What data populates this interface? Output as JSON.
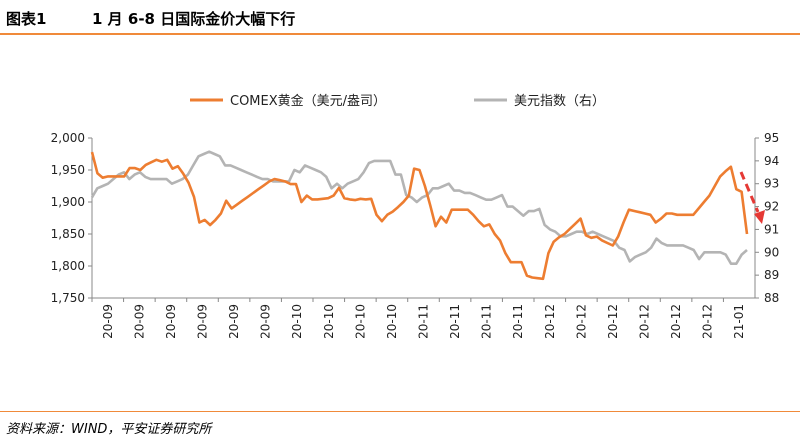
{
  "header": {
    "label": "图表1",
    "title": "1 月 6-8 日国际金价大幅下行"
  },
  "source": "资料来源：WIND，平安证券研究所",
  "colors": {
    "gold": "#ed7d31",
    "usd": "#b4b4b4",
    "arrow": "#e53935",
    "accent": "#f08a3a"
  },
  "chart_data": {
    "type": "line",
    "title": "1 月 6-8 日国际金价大幅下行",
    "legend_position": "top",
    "grid": false,
    "x_tick_labels": [
      "20-09",
      "20-09",
      "20-09",
      "20-09",
      "20-09",
      "20-09",
      "20-10",
      "20-10",
      "20-10",
      "20-10",
      "20-11",
      "20-11",
      "20-11",
      "20-11",
      "20-12",
      "20-12",
      "20-12",
      "20-12",
      "20-12",
      "20-12",
      "21-01"
    ],
    "y_left": {
      "min": 1750,
      "max": 2000,
      "ticks": [
        "1,750",
        "1,800",
        "1,850",
        "1,900",
        "1,950",
        "2,000"
      ]
    },
    "y_right": {
      "min": 88,
      "max": 95,
      "ticks": [
        "88",
        "89",
        "90",
        "91",
        "92",
        "93",
        "94",
        "95"
      ]
    },
    "series": [
      {
        "name": "COMEX黄金（美元/盎司）",
        "axis": "left",
        "values": [
          1978,
          1945,
          1938,
          1940,
          1940,
          1940,
          1940,
          1953,
          1953,
          1950,
          1958,
          1962,
          1966,
          1963,
          1966,
          1952,
          1956,
          1944,
          1930,
          1908,
          1868,
          1872,
          1864,
          1872,
          1882,
          1902,
          1890,
          1896,
          1902,
          1908,
          1914,
          1920,
          1926,
          1932,
          1936,
          1934,
          1932,
          1928,
          1928,
          1900,
          1910,
          1904,
          1904,
          1905,
          1906,
          1910,
          1922,
          1906,
          1904,
          1903,
          1905,
          1904,
          1905,
          1880,
          1870,
          1880,
          1885,
          1892,
          1900,
          1910,
          1952,
          1950,
          1925,
          1895,
          1862,
          1877,
          1868,
          1888,
          1888,
          1888,
          1888,
          1880,
          1870,
          1862,
          1865,
          1850,
          1840,
          1820,
          1806,
          1806,
          1806,
          1785,
          1782,
          1781,
          1780,
          1820,
          1838,
          1845,
          1850,
          1858,
          1866,
          1874,
          1848,
          1844,
          1846,
          1840,
          1836,
          1832,
          1846,
          1868,
          1888,
          1886,
          1884,
          1882,
          1880,
          1868,
          1874,
          1882,
          1882,
          1880,
          1880,
          1880,
          1880,
          1890,
          1900,
          1910,
          1925,
          1940,
          1948,
          1955,
          1920,
          1916,
          1850
        ]
      },
      {
        "name": "美元指数（右）",
        "axis": "right",
        "values": [
          92.4,
          92.8,
          92.9,
          93.0,
          93.2,
          93.4,
          93.5,
          93.2,
          93.4,
          93.5,
          93.3,
          93.2,
          93.2,
          93.2,
          93.2,
          93.0,
          93.1,
          93.2,
          93.4,
          93.8,
          94.2,
          94.3,
          94.4,
          94.3,
          94.2,
          93.8,
          93.8,
          93.7,
          93.6,
          93.5,
          93.4,
          93.3,
          93.2,
          93.2,
          93.1,
          93.1,
          93.1,
          93.1,
          93.6,
          93.5,
          93.8,
          93.7,
          93.6,
          93.5,
          93.3,
          92.8,
          93.0,
          92.8,
          93.0,
          93.1,
          93.2,
          93.5,
          93.9,
          94.0,
          94.0,
          94.0,
          94.0,
          93.4,
          93.4,
          92.5,
          92.4,
          92.2,
          92.4,
          92.5,
          92.8,
          92.8,
          92.9,
          93.0,
          92.7,
          92.7,
          92.6,
          92.6,
          92.5,
          92.4,
          92.3,
          92.3,
          92.4,
          92.5,
          92.0,
          92.0,
          91.8,
          91.6,
          91.8,
          91.8,
          91.9,
          91.2,
          91.0,
          90.9,
          90.7,
          90.7,
          90.8,
          90.9,
          90.9,
          90.8,
          90.9,
          90.8,
          90.7,
          90.6,
          90.5,
          90.2,
          90.1,
          89.6,
          89.8,
          89.9,
          90.0,
          90.2,
          90.6,
          90.4,
          90.3,
          90.3,
          90.3,
          90.3,
          90.2,
          90.1,
          89.7,
          90.0,
          90.0,
          90.0,
          90.0,
          89.9,
          89.5,
          89.5,
          89.9,
          90.1
        ]
      }
    ]
  }
}
